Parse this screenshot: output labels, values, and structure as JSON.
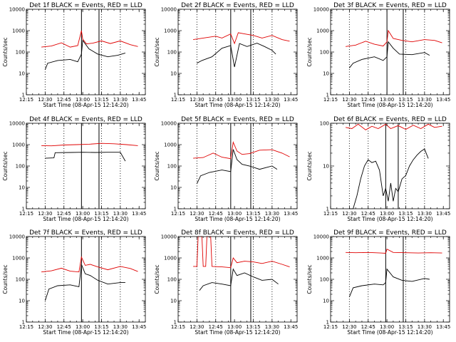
{
  "figure_colors": {
    "events": "#000000",
    "lld": "#e00000",
    "background": "#ffffff"
  },
  "chart_data": [
    {
      "type": "line",
      "title": "Det 1f BLACK = Events, RED = LLD",
      "xlabel": "Start Time (08-Apr-15 12:14:20)",
      "ylabel": "Counts/sec",
      "x_ticks": [
        "12:15",
        "12:30",
        "12:45",
        "13:00",
        "13:15",
        "13:30",
        "13:45"
      ],
      "y_ticks": [
        "1",
        "10",
        "100",
        "1000",
        "10000"
      ],
      "yscale": "log",
      "ylim": [
        1,
        10000
      ],
      "dotted_markers": [
        "12:30",
        "12:45",
        "13:15",
        "13:30"
      ],
      "solid_markers": [
        "12:59",
        "13:13"
      ],
      "series": [
        {
          "name": "LLD",
          "color": "#e00000",
          "x": [
            "12:27",
            "12:35",
            "12:43",
            "12:50",
            "12:56",
            "12:59",
            "13:00",
            "13:03",
            "13:08",
            "13:15",
            "13:22",
            "13:30",
            "13:38",
            "13:44"
          ],
          "y": [
            170,
            190,
            270,
            170,
            200,
            1000,
            400,
            240,
            260,
            330,
            250,
            330,
            220,
            180
          ]
        },
        {
          "name": "Events",
          "color": "#000000",
          "x": [
            "12:30",
            "12:32",
            "12:40",
            "12:50",
            "12:56",
            "12:59",
            "13:00",
            "13:05",
            "13:12",
            "13:20",
            "13:28",
            "13:34"
          ],
          "y": [
            15,
            30,
            40,
            45,
            35,
            80,
            350,
            140,
            80,
            60,
            70,
            90
          ]
        }
      ]
    },
    {
      "type": "line",
      "title": "Det 2f BLACK = Events, RED = LLD",
      "xlabel": "Start Time (08-Apr-15 12:14:20)",
      "ylabel": "Counts/sec",
      "x_ticks": [
        "12:15",
        "12:30",
        "12:45",
        "13:00",
        "13:15",
        "13:30",
        "13:45"
      ],
      "y_ticks": [
        "1",
        "10",
        "100",
        "1000",
        "10000"
      ],
      "yscale": "log",
      "ylim": [
        1,
        10000
      ],
      "dotted_markers": [
        "12:30",
        "12:45",
        "13:15",
        "13:30"
      ],
      "solid_markers": [
        "12:57",
        "13:13"
      ],
      "series": [
        {
          "name": "LLD",
          "color": "#e00000",
          "x": [
            "12:27",
            "12:35",
            "12:45",
            "12:50",
            "12:57",
            "13:00",
            "13:03",
            "13:08",
            "13:15",
            "13:22",
            "13:30",
            "13:38",
            "13:44"
          ],
          "y": [
            380,
            450,
            550,
            450,
            700,
            250,
            800,
            700,
            600,
            450,
            600,
            380,
            320
          ]
        },
        {
          "name": "Events",
          "color": "#000000",
          "x": [
            "12:30",
            "12:34",
            "12:42",
            "12:50",
            "12:57",
            "13:00",
            "13:04",
            "13:10",
            "13:18",
            "13:24",
            "13:30",
            "13:33"
          ],
          "y": [
            30,
            40,
            60,
            150,
            200,
            20,
            250,
            180,
            260,
            180,
            120,
            80
          ]
        }
      ]
    },
    {
      "type": "line",
      "title": "Det 3f BLACK = Events, RED = LLD",
      "xlabel": "Start Time (08-Apr-15 12:14:20)",
      "ylabel": "Counts/sec",
      "x_ticks": [
        "12:15",
        "12:30",
        "12:45",
        "13:00",
        "13:15",
        "13:30",
        "13:45"
      ],
      "y_ticks": [
        "1",
        "10",
        "100",
        "1000",
        "10000"
      ],
      "yscale": "log",
      "ylim": [
        1,
        10000
      ],
      "dotted_markers": [
        "12:30",
        "12:45",
        "13:15",
        "13:30"
      ],
      "solid_markers": [
        "13:00",
        "13:13"
      ],
      "series": [
        {
          "name": "LLD",
          "color": "#e00000",
          "x": [
            "12:27",
            "12:35",
            "12:43",
            "12:50",
            "12:57",
            "13:00",
            "13:01",
            "13:05",
            "13:12",
            "13:20",
            "13:30",
            "13:38",
            "13:44"
          ],
          "y": [
            180,
            210,
            320,
            230,
            190,
            300,
            1000,
            430,
            350,
            300,
            380,
            350,
            270
          ]
        },
        {
          "name": "Events",
          "color": "#000000",
          "x": [
            "12:30",
            "12:33",
            "12:40",
            "12:50",
            "12:57",
            "13:00",
            "13:01",
            "13:05",
            "13:10",
            "13:20",
            "13:30",
            "13:34"
          ],
          "y": [
            18,
            30,
            45,
            60,
            40,
            60,
            300,
            150,
            80,
            75,
            95,
            70
          ]
        }
      ]
    },
    {
      "type": "line",
      "title": "Det 4f BLACK = Events, RED = LLD",
      "xlabel": "Start Time (08-Apr-15 12:14:20)",
      "ylabel": "Counts/sec",
      "x_ticks": [
        "12:15",
        "12:30",
        "12:45",
        "13:00",
        "13:15",
        "13:30",
        "13:45"
      ],
      "y_ticks": [
        "1",
        "10",
        "100",
        "1000",
        "10000"
      ],
      "yscale": "log",
      "ylim": [
        1,
        10000
      ],
      "dotted_markers": [
        "12:30",
        "12:45",
        "13:15",
        "13:30"
      ],
      "solid_markers": [
        "12:59",
        "13:13"
      ],
      "series": [
        {
          "name": "LLD",
          "color": "#e00000",
          "x": [
            "12:27",
            "12:35",
            "12:45",
            "12:55",
            "13:05",
            "13:15",
            "13:25",
            "13:35",
            "13:44"
          ],
          "y": [
            900,
            880,
            960,
            1000,
            1050,
            1150,
            1100,
            1000,
            900
          ]
        },
        {
          "name": "Events",
          "color": "#000000",
          "x": [
            "12:30",
            "12:37",
            "12:38",
            "12:50",
            "13:00",
            "13:10",
            "13:20",
            "13:30",
            "13:34"
          ],
          "y": [
            230,
            240,
            420,
            430,
            440,
            430,
            440,
            440,
            170
          ]
        }
      ]
    },
    {
      "type": "line",
      "title": "Det 5f BLACK = Events, RED = LLD",
      "xlabel": "Start Time (08-Apr-15 12:14:20)",
      "ylabel": "Counts/sec",
      "x_ticks": [
        "12:15",
        "12:30",
        "12:45",
        "13:00",
        "13:15",
        "13:30",
        "13:45"
      ],
      "y_ticks": [
        "1",
        "10",
        "100",
        "1000",
        "10000"
      ],
      "yscale": "log",
      "ylim": [
        1,
        10000
      ],
      "dotted_markers": [
        "12:30",
        "12:45",
        "13:15",
        "13:30"
      ],
      "solid_markers": [
        "12:57",
        "13:13"
      ],
      "series": [
        {
          "name": "LLD",
          "color": "#e00000",
          "x": [
            "12:27",
            "12:35",
            "12:43",
            "12:50",
            "12:57",
            "12:59",
            "13:02",
            "13:06",
            "13:12",
            "13:20",
            "13:30",
            "13:38",
            "13:44"
          ],
          "y": [
            230,
            250,
            400,
            260,
            220,
            1300,
            500,
            350,
            380,
            550,
            580,
            400,
            270
          ]
        },
        {
          "name": "Events",
          "color": "#000000",
          "x": [
            "12:30",
            "12:33",
            "12:40",
            "12:50",
            "12:57",
            "12:59",
            "13:02",
            "13:06",
            "13:12",
            "13:20",
            "13:30",
            "13:34"
          ],
          "y": [
            15,
            35,
            50,
            65,
            55,
            600,
            200,
            120,
            100,
            70,
            100,
            70
          ]
        }
      ]
    },
    {
      "type": "line",
      "title": "Det 6f BLACK = Events, RED = LLD",
      "xlabel": "Start Time (08-Apr-15 12:14:20)",
      "ylabel": "Counts/sec",
      "x_ticks": [
        "12:15",
        "12:30",
        "12:45",
        "13:00",
        "13:15",
        "13:30",
        "13:45"
      ],
      "y_ticks": [
        "1",
        "10",
        "100"
      ],
      "yscale": "log",
      "ylim": [
        1,
        100
      ],
      "dotted_markers": [
        "12:30",
        "12:45",
        "13:15",
        "13:30"
      ],
      "solid_markers": [
        "12:59",
        "13:09"
      ],
      "series": [
        {
          "name": "LLD",
          "color": "#e00000",
          "x": [
            "12:27",
            "12:32",
            "12:37",
            "12:43",
            "12:48",
            "12:53",
            "12:59",
            "13:03",
            "13:09",
            "13:15",
            "13:21",
            "13:27",
            "13:33",
            "13:38",
            "13:44"
          ],
          "y": [
            80,
            75,
            95,
            70,
            85,
            75,
            95,
            75,
            88,
            72,
            90,
            75,
            95,
            80,
            85
          ]
        },
        {
          "name": "Events",
          "color": "#000000",
          "x": [
            "12:30",
            "12:33",
            "12:36",
            "12:39",
            "12:42",
            "12:45",
            "12:48",
            "12:51",
            "12:54",
            "12:57",
            "12:59",
            "13:01",
            "13:03",
            "13:05",
            "13:07",
            "13:09",
            "13:12",
            "13:15",
            "13:18",
            "13:21",
            "13:24",
            "13:27",
            "13:30",
            "13:33"
          ],
          "y": [
            1,
            1,
            2,
            5,
            10,
            14,
            12,
            13,
            8,
            2,
            3,
            1.5,
            4,
            1.5,
            3,
            2.5,
            5,
            6,
            10,
            14,
            18,
            22,
            25,
            15
          ]
        }
      ]
    },
    {
      "type": "line",
      "title": "Det 7f BLACK = Events, RED = LLD",
      "xlabel": "Start Time (08-Apr-15 12:14:20)",
      "ylabel": "Counts/sec",
      "x_ticks": [
        "12:15",
        "12:30",
        "12:45",
        "13:00",
        "13:15",
        "13:30",
        "13:45"
      ],
      "y_ticks": [
        "1",
        "10",
        "100",
        "1000",
        "10000"
      ],
      "yscale": "log",
      "ylim": [
        1,
        10000
      ],
      "dotted_markers": [
        "12:30",
        "12:45",
        "13:15",
        "13:30"
      ],
      "solid_markers": [
        "12:59",
        "13:13"
      ],
      "series": [
        {
          "name": "LLD",
          "color": "#e00000",
          "x": [
            "12:27",
            "12:35",
            "12:43",
            "12:50",
            "12:57",
            "12:59",
            "13:02",
            "13:06",
            "13:12",
            "13:20",
            "13:30",
            "13:38",
            "13:44"
          ],
          "y": [
            220,
            250,
            330,
            240,
            220,
            1100,
            450,
            500,
            380,
            280,
            400,
            320,
            230
          ]
        },
        {
          "name": "Events",
          "color": "#000000",
          "x": [
            "12:30",
            "12:33",
            "12:40",
            "12:50",
            "12:57",
            "12:59",
            "13:02",
            "13:06",
            "13:12",
            "13:20",
            "13:30",
            "13:34"
          ],
          "y": [
            10,
            35,
            50,
            55,
            45,
            500,
            180,
            150,
            90,
            60,
            70,
            70
          ]
        }
      ]
    },
    {
      "type": "line",
      "title": "Det 8f BLACK = Events, RED = LLD",
      "xlabel": "Start Time (08-Apr-15 12:14:20)",
      "ylabel": "Counts/sec",
      "x_ticks": [
        "12:15",
        "12:30",
        "12:45",
        "13:00",
        "13:15",
        "13:30",
        "13:45"
      ],
      "y_ticks": [
        "1",
        "10",
        "100",
        "1000",
        "10000"
      ],
      "yscale": "log",
      "ylim": [
        1,
        10000
      ],
      "dotted_markers": [
        "12:30",
        "12:45",
        "13:15",
        "13:30"
      ],
      "solid_markers": [
        "12:57",
        "13:13"
      ],
      "series": [
        {
          "name": "LLD",
          "color": "#e00000",
          "x": [
            "12:27",
            "12:30",
            "12:31",
            "12:34",
            "12:35",
            "12:37",
            "12:38",
            "12:41",
            "12:42",
            "12:50",
            "12:57",
            "12:59",
            "13:02",
            "13:08",
            "13:15",
            "13:22",
            "13:30",
            "13:38",
            "13:44"
          ],
          "y": [
            400,
            400,
            10000,
            10000,
            400,
            400,
            10000,
            10000,
            400,
            380,
            350,
            1000,
            600,
            700,
            650,
            550,
            700,
            500,
            380
          ]
        },
        {
          "name": "Events",
          "color": "#000000",
          "x": [
            "12:32",
            "12:35",
            "12:42",
            "12:50",
            "12:57",
            "12:59",
            "13:02",
            "13:08",
            "13:15",
            "13:22",
            "13:30",
            "13:35"
          ],
          "y": [
            30,
            50,
            70,
            60,
            50,
            300,
            150,
            200,
            130,
            90,
            100,
            60
          ]
        }
      ]
    },
    {
      "type": "line",
      "title": "Det 9f BLACK = Events, RED = LLD",
      "xlabel": "Start Time (08-Apr-15 12:14:20)",
      "ylabel": "Counts/sec",
      "x_ticks": [
        "12:15",
        "12:30",
        "12:45",
        "13:00",
        "13:15",
        "13:30",
        "13:45"
      ],
      "y_ticks": [
        "1",
        "10",
        "100",
        "1000",
        "10000"
      ],
      "yscale": "log",
      "ylim": [
        1,
        10000
      ],
      "dotted_markers": [
        "12:30",
        "12:45",
        "13:15",
        "13:30"
      ],
      "solid_markers": [
        "12:59",
        "13:13"
      ],
      "series": [
        {
          "name": "LLD",
          "color": "#e00000",
          "x": [
            "12:27",
            "12:35",
            "12:45",
            "12:55",
            "12:59",
            "13:00",
            "13:05",
            "13:15",
            "13:25",
            "13:35",
            "13:44"
          ],
          "y": [
            1800,
            1750,
            1800,
            1700,
            1650,
            2600,
            1800,
            1750,
            1700,
            1750,
            1700
          ]
        },
        {
          "name": "Events",
          "color": "#000000",
          "x": [
            "12:30",
            "12:33",
            "12:40",
            "12:50",
            "12:57",
            "12:59",
            "13:00",
            "13:05",
            "13:12",
            "13:20",
            "13:30",
            "13:34"
          ],
          "y": [
            15,
            40,
            50,
            60,
            55,
            70,
            300,
            130,
            90,
            80,
            110,
            100
          ]
        }
      ]
    }
  ]
}
